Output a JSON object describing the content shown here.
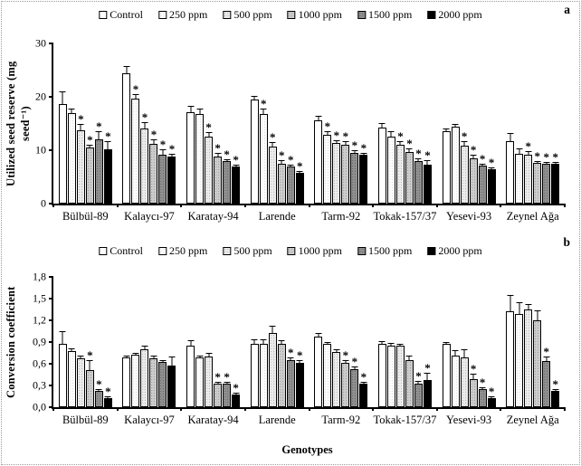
{
  "figure": {
    "x_title": "Genotypes",
    "frame_color": "#9a9a9a",
    "background": "#ffffff"
  },
  "legend": {
    "items": [
      {
        "label": "Control",
        "pattern": "plain",
        "color": "#ffffff"
      },
      {
        "label": "250 ppm",
        "pattern": "dots-faint",
        "color": "#fcfcfc"
      },
      {
        "label": "500 ppm",
        "pattern": "dots-light",
        "color": "#eaeaea"
      },
      {
        "label": "1000 ppm",
        "pattern": "dots-med",
        "color": "#cbcbcb"
      },
      {
        "label": "1500 ppm",
        "pattern": "dots-dark",
        "color": "#8e8e8e"
      },
      {
        "label": "2000 ppm",
        "pattern": "solid",
        "color": "#000000"
      }
    ]
  },
  "chart_data": [
    {
      "type": "bar",
      "panel_label": "a",
      "y_title": "Utilized seed reserve (mg seed⁻¹)",
      "xlabel": "",
      "ylim": [
        0,
        30
      ],
      "grid": false,
      "legend_position": "top-center",
      "yticks": [
        {
          "v": 0,
          "label": "0"
        },
        {
          "v": 10,
          "label": "10"
        },
        {
          "v": 20,
          "label": "20"
        },
        {
          "v": 30,
          "label": "30"
        }
      ],
      "categories": [
        "Bülbül-89",
        "Kalaycı-97",
        "Karatay-94",
        "Larende",
        "Tarm-92",
        "Tokak-157/37",
        "Yesevi-93",
        "Zeynel Ağa"
      ],
      "series": [
        {
          "name": "Control",
          "pattern": "plain",
          "values": [
            18.7,
            24.4,
            17.1,
            19.5,
            15.6,
            14.2,
            13.6,
            11.7
          ],
          "errors": [
            2.4,
            1.4,
            1.2,
            0.6,
            0.8,
            0.9,
            0.5,
            1.6
          ],
          "sig": [
            false,
            false,
            false,
            false,
            false,
            false,
            false,
            false
          ]
        },
        {
          "name": "250 ppm",
          "pattern": "dots-faint",
          "values": [
            17.0,
            19.7,
            16.7,
            16.7,
            12.8,
            12.5,
            14.4,
            9.4
          ],
          "errors": [
            0.8,
            0.9,
            1.0,
            1.0,
            0.7,
            1.0,
            0.5,
            1.0
          ],
          "sig": [
            false,
            true,
            false,
            true,
            true,
            false,
            false,
            false
          ]
        },
        {
          "name": "500 ppm",
          "pattern": "dots-light",
          "values": [
            13.8,
            14.0,
            12.5,
            10.7,
            11.4,
            11.0,
            10.8,
            9.1
          ],
          "errors": [
            1.2,
            1.2,
            0.8,
            0.9,
            0.5,
            0.7,
            0.9,
            0.6
          ],
          "sig": [
            true,
            true,
            true,
            true,
            true,
            true,
            true,
            true
          ]
        },
        {
          "name": "1000 ppm",
          "pattern": "dots-med",
          "values": [
            10.5,
            11.2,
            8.8,
            7.5,
            11.1,
            9.7,
            8.5,
            7.6
          ],
          "errors": [
            0.5,
            0.9,
            0.6,
            0.6,
            0.6,
            0.6,
            0.7,
            0.4
          ],
          "sig": [
            true,
            true,
            true,
            true,
            true,
            true,
            true,
            true
          ]
        },
        {
          "name": "1500 ppm",
          "pattern": "dots-dark",
          "values": [
            12.0,
            9.2,
            7.9,
            6.9,
            9.5,
            7.9,
            7.1,
            7.4
          ],
          "errors": [
            1.5,
            1.0,
            0.4,
            0.4,
            0.5,
            0.5,
            0.3,
            0.3
          ],
          "sig": [
            true,
            true,
            true,
            true,
            true,
            true,
            true,
            true
          ]
        },
        {
          "name": "2000 ppm",
          "pattern": "solid",
          "values": [
            10.2,
            8.8,
            6.9,
            5.7,
            9.1,
            7.3,
            6.4,
            7.5
          ],
          "errors": [
            1.5,
            0.5,
            0.4,
            0.4,
            0.4,
            0.8,
            0.3,
            0.4
          ],
          "sig": [
            true,
            true,
            true,
            true,
            true,
            true,
            true,
            true
          ]
        }
      ]
    },
    {
      "type": "bar",
      "panel_label": "b",
      "y_title": "Conversion coefficient",
      "xlabel": "Genotypes",
      "ylim": [
        0,
        1.8
      ],
      "grid": false,
      "legend_position": "top-center",
      "yticks": [
        {
          "v": 0,
          "label": "0,0"
        },
        {
          "v": 0.3,
          "label": "0,3"
        },
        {
          "v": 0.6,
          "label": "0,6"
        },
        {
          "v": 0.9,
          "label": "0,9"
        },
        {
          "v": 1.2,
          "label": "1,2"
        },
        {
          "v": 1.5,
          "label": "1,5"
        },
        {
          "v": 1.8,
          "label": "1,8"
        }
      ],
      "categories": [
        "Bülbül-89",
        "Kalaycı-97",
        "Karatay-94",
        "Larende",
        "Tarm-92",
        "Tokak-157/37",
        "Yesevi-93",
        "Zeynel Ağa"
      ],
      "series": [
        {
          "name": "Control",
          "pattern": "plain",
          "values": [
            0.87,
            0.69,
            0.85,
            0.88,
            0.98,
            0.88,
            0.87,
            1.32
          ],
          "errors": [
            0.17,
            0.03,
            0.08,
            0.06,
            0.05,
            0.04,
            0.02,
            0.23
          ],
          "sig": [
            false,
            false,
            false,
            false,
            false,
            false,
            false,
            false
          ]
        },
        {
          "name": "250 ppm",
          "pattern": "dots-faint",
          "values": [
            0.77,
            0.72,
            0.69,
            0.87,
            0.87,
            0.85,
            0.71,
            1.29
          ],
          "errors": [
            0.04,
            0.03,
            0.03,
            0.06,
            0.03,
            0.04,
            0.07,
            0.16
          ],
          "sig": [
            false,
            false,
            false,
            false,
            false,
            false,
            false,
            false
          ]
        },
        {
          "name": "500 ppm",
          "pattern": "dots-light",
          "values": [
            0.68,
            0.8,
            0.7,
            1.02,
            0.76,
            0.85,
            0.69,
            1.35
          ],
          "errors": [
            0.04,
            0.05,
            0.05,
            0.1,
            0.04,
            0.03,
            0.11,
            0.08
          ],
          "sig": [
            false,
            false,
            false,
            false,
            false,
            false,
            false,
            false
          ]
        },
        {
          "name": "1000 ppm",
          "pattern": "dots-med",
          "values": [
            0.51,
            0.68,
            0.32,
            0.87,
            0.61,
            0.65,
            0.39,
            1.2
          ],
          "errors": [
            0.14,
            0.04,
            0.03,
            0.05,
            0.04,
            0.06,
            0.08,
            0.14
          ],
          "sig": [
            true,
            false,
            true,
            false,
            true,
            false,
            true,
            false
          ]
        },
        {
          "name": "1500 ppm",
          "pattern": "dots-dark",
          "values": [
            0.22,
            0.62,
            0.33,
            0.65,
            0.52,
            0.33,
            0.25,
            0.64
          ],
          "errors": [
            0.03,
            0.03,
            0.03,
            0.04,
            0.04,
            0.04,
            0.03,
            0.06
          ],
          "sig": [
            true,
            false,
            true,
            true,
            true,
            true,
            true,
            true
          ]
        },
        {
          "name": "2000 ppm",
          "pattern": "solid",
          "values": [
            0.12,
            0.57,
            0.17,
            0.61,
            0.32,
            0.37,
            0.13,
            0.23
          ],
          "errors": [
            0.03,
            0.13,
            0.03,
            0.04,
            0.03,
            0.1,
            0.02,
            0.03
          ],
          "sig": [
            true,
            false,
            true,
            true,
            true,
            true,
            true,
            true
          ]
        }
      ]
    }
  ]
}
